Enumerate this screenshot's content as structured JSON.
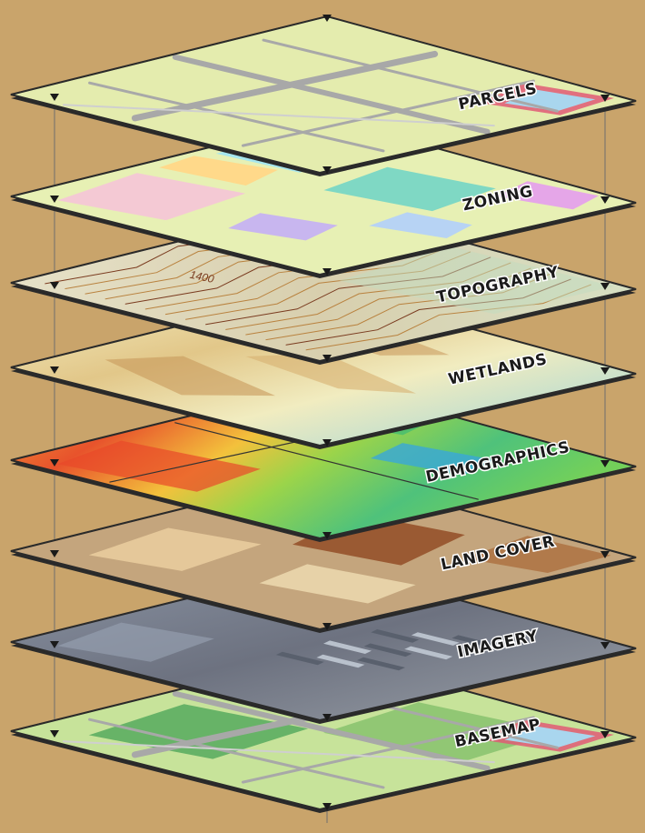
{
  "layers": [
    {
      "id": "parcels",
      "label": "PARCELS"
    },
    {
      "id": "zoning",
      "label": "ZONING"
    },
    {
      "id": "topography",
      "label": "TOPOGRAPHY",
      "contour_label": "1400"
    },
    {
      "id": "wetlands",
      "label": "WETLANDS"
    },
    {
      "id": "demographics",
      "label": "DEMOGRAPHICS"
    },
    {
      "id": "land-cover",
      "label": "LAND COVER"
    },
    {
      "id": "imagery",
      "label": "IMAGERY"
    },
    {
      "id": "basemap",
      "label": "BASEMAP"
    }
  ],
  "colors": {
    "background": "#c9a46b",
    "parcels": "#e4ecae",
    "zoning": "#e7f0b4",
    "topography": "#ddd6b8",
    "wetlands": "#eee2ae",
    "demographics": "#7fcf4a",
    "land_cover": "#c4a57d",
    "imagery": "#7c8494",
    "basemap": "#c7e39a",
    "road": "#a8a8a8",
    "frame": "#2a2a2a"
  }
}
